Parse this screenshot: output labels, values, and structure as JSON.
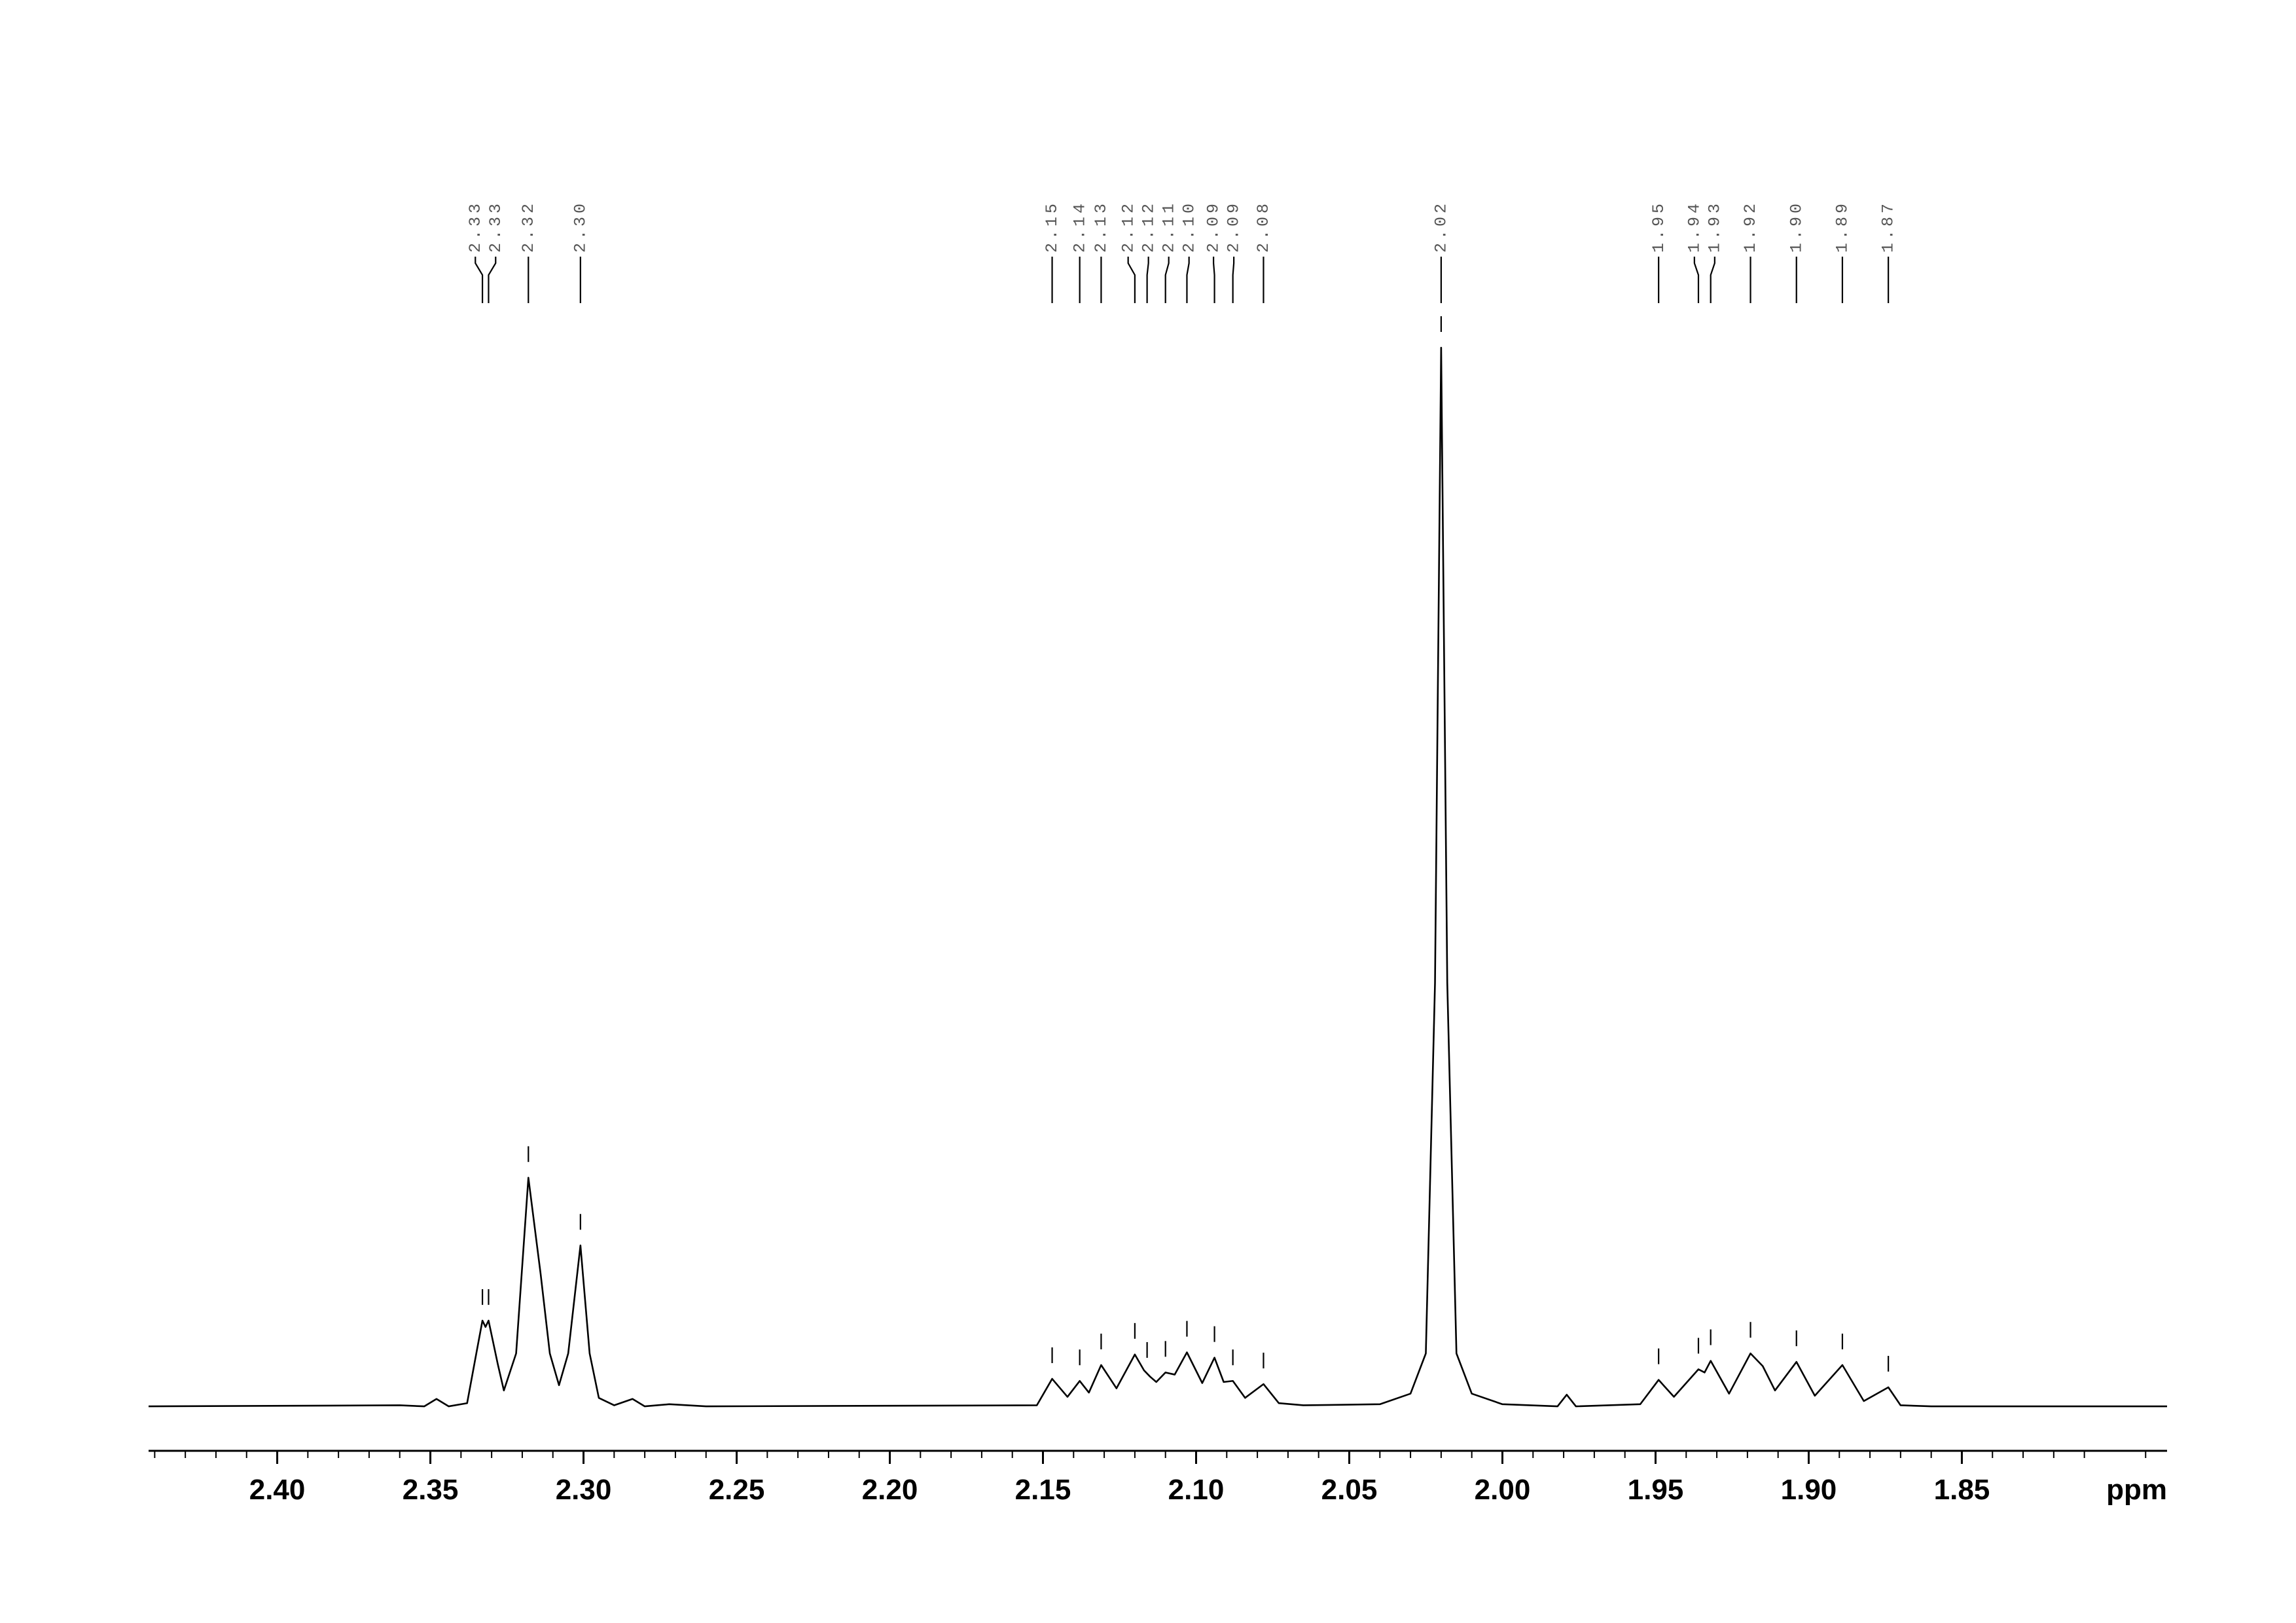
{
  "chart_data": {
    "type": "nmr",
    "xlabel": "ppm",
    "xlim": [
      2.442,
      1.783
    ],
    "ylim": [
      -4.2,
      100
    ],
    "xticks": [
      {
        "value": 2.4,
        "label": "2.40"
      },
      {
        "value": 2.35,
        "label": "2.35"
      },
      {
        "value": 2.3,
        "label": "2.30"
      },
      {
        "value": 2.25,
        "label": "2.25"
      },
      {
        "value": 2.2,
        "label": "2.20"
      },
      {
        "value": 2.15,
        "label": "2.15"
      },
      {
        "value": 2.1,
        "label": "2.10"
      },
      {
        "value": 2.05,
        "label": "2.05"
      },
      {
        "value": 2.0,
        "label": "2.00"
      },
      {
        "value": 1.95,
        "label": "1.95"
      },
      {
        "value": 1.9,
        "label": "1.90"
      },
      {
        "value": 1.85,
        "label": "1.85"
      }
    ],
    "color": "#000000",
    "x": [
      2.442,
      2.36,
      2.352,
      2.348,
      2.344,
      2.338,
      2.335,
      2.333,
      2.332,
      2.331,
      2.328,
      2.326,
      2.322,
      2.318,
      2.314,
      2.311,
      2.308,
      2.305,
      2.301,
      2.298,
      2.295,
      2.29,
      2.284,
      2.28,
      2.272,
      2.26,
      2.152,
      2.147,
      2.142,
      2.138,
      2.135,
      2.131,
      2.126,
      2.12,
      2.117,
      2.115,
      2.113,
      2.11,
      2.107,
      2.103,
      2.098,
      2.094,
      2.091,
      2.088,
      2.084,
      2.078,
      2.073,
      2.065,
      2.04,
      2.03,
      2.025,
      2.022,
      2.02,
      2.018,
      2.015,
      2.01,
      2.0,
      1.982,
      1.979,
      1.976,
      1.955,
      1.949,
      1.944,
      1.936,
      1.934,
      1.932,
      1.926,
      1.919,
      1.915,
      1.911,
      1.904,
      1.898,
      1.889,
      1.882,
      1.874,
      1.87,
      1.86,
      1.783
    ],
    "y": [
      0,
      0.1,
      0,
      0.7,
      0,
      0.3,
      5,
      8.1,
      7.5,
      8.1,
      4,
      1.5,
      5,
      21.6,
      12.5,
      5,
      2,
      5,
      15.2,
      5,
      0.8,
      0.1,
      0.7,
      0,
      0.2,
      0,
      0.1,
      2.6,
      0.9,
      2.4,
      1.3,
      3.9,
      1.7,
      4.9,
      3.4,
      2.8,
      2.3,
      3.2,
      3.0,
      5.1,
      2.2,
      4.6,
      2.3,
      2.4,
      0.8,
      2.1,
      0.3,
      0.1,
      0.2,
      1.2,
      5,
      40,
      100,
      40,
      5,
      1.2,
      0.2,
      0,
      1.1,
      0,
      0.2,
      2.5,
      0.9,
      3.5,
      3.2,
      4.3,
      1.2,
      5.0,
      3.8,
      1.5,
      4.2,
      1.0,
      3.9,
      0.5,
      1.8,
      0.1,
      0,
      0
    ],
    "peaks": [
      {
        "x": 2.333,
        "label": "2.33"
      },
      {
        "x": 2.331,
        "label": "2.33"
      },
      {
        "x": 2.318,
        "label": "2.32"
      },
      {
        "x": 2.301,
        "label": "2.30"
      },
      {
        "x": 2.147,
        "label": "2.15"
      },
      {
        "x": 2.138,
        "label": "2.14"
      },
      {
        "x": 2.131,
        "label": "2.13"
      },
      {
        "x": 2.12,
        "label": "2.12"
      },
      {
        "x": 2.116,
        "label": "2.12"
      },
      {
        "x": 2.11,
        "label": "2.11"
      },
      {
        "x": 2.103,
        "label": "2.10"
      },
      {
        "x": 2.094,
        "label": "2.09"
      },
      {
        "x": 2.088,
        "label": "2.09"
      },
      {
        "x": 2.078,
        "label": "2.08"
      },
      {
        "x": 2.02,
        "label": "2.02"
      },
      {
        "x": 1.949,
        "label": "1.95"
      },
      {
        "x": 1.936,
        "label": "1.94"
      },
      {
        "x": 1.932,
        "label": "1.93"
      },
      {
        "x": 1.919,
        "label": "1.92"
      },
      {
        "x": 1.904,
        "label": "1.90"
      },
      {
        "x": 1.889,
        "label": "1.89"
      },
      {
        "x": 1.874,
        "label": "1.87"
      }
    ]
  }
}
